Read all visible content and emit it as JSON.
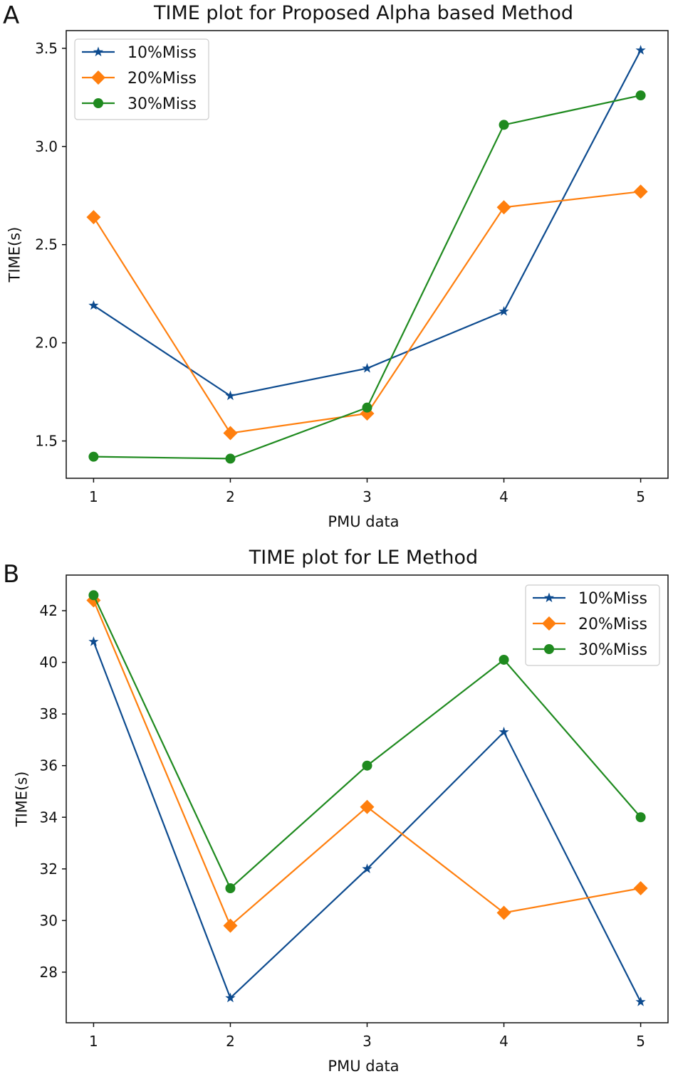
{
  "chart_data": [
    {
      "panel_label": "A",
      "type": "line",
      "title": "TIME plot for Proposed Alpha based Method",
      "xlabel": "PMU data",
      "ylabel": "TIME(s)",
      "x": [
        1,
        2,
        3,
        4,
        5
      ],
      "xticks": [
        "1",
        "2",
        "3",
        "4",
        "5"
      ],
      "yticks": [
        "1.5",
        "2.0",
        "2.5",
        "3.0",
        "3.5"
      ],
      "ytick_values": [
        1.5,
        2.0,
        2.5,
        3.0,
        3.5
      ],
      "xlim": [
        0.8,
        5.2
      ],
      "ylim": [
        1.31,
        3.59
      ],
      "legend": "top-left",
      "grid": false,
      "series": [
        {
          "name": "10%Miss",
          "marker": "star",
          "color": "#0d4b8f",
          "values": [
            2.19,
            1.73,
            1.87,
            2.16,
            3.49
          ]
        },
        {
          "name": "20%Miss",
          "marker": "diamond",
          "color": "#ff7f0e",
          "values": [
            2.64,
            1.54,
            1.64,
            2.69,
            2.77
          ]
        },
        {
          "name": "30%Miss",
          "marker": "circle",
          "color": "#1f8a1f",
          "values": [
            1.42,
            1.41,
            1.67,
            3.11,
            3.26
          ]
        }
      ]
    },
    {
      "panel_label": "B",
      "type": "line",
      "title": "TIME plot for LE Method",
      "xlabel": "PMU data",
      "ylabel": "TIME(s)",
      "x": [
        1,
        2,
        3,
        4,
        5
      ],
      "xticks": [
        "1",
        "2",
        "3",
        "4",
        "5"
      ],
      "yticks": [
        "28",
        "30",
        "32",
        "34",
        "36",
        "38",
        "40",
        "42"
      ],
      "ytick_values": [
        28,
        30,
        32,
        34,
        36,
        38,
        40,
        42
      ],
      "xlim": [
        0.8,
        5.2
      ],
      "ylim": [
        26.04,
        43.38
      ],
      "legend": "top-right",
      "grid": false,
      "series": [
        {
          "name": "10%Miss",
          "marker": "star",
          "color": "#0d4b8f",
          "values": [
            40.8,
            27.0,
            32.0,
            37.3,
            26.85
          ]
        },
        {
          "name": "20%Miss",
          "marker": "diamond",
          "color": "#ff7f0e",
          "values": [
            42.4,
            29.8,
            34.4,
            30.3,
            31.25
          ]
        },
        {
          "name": "30%Miss",
          "marker": "circle",
          "color": "#1f8a1f",
          "values": [
            42.6,
            31.25,
            36.0,
            40.1,
            34.0
          ]
        }
      ]
    }
  ]
}
